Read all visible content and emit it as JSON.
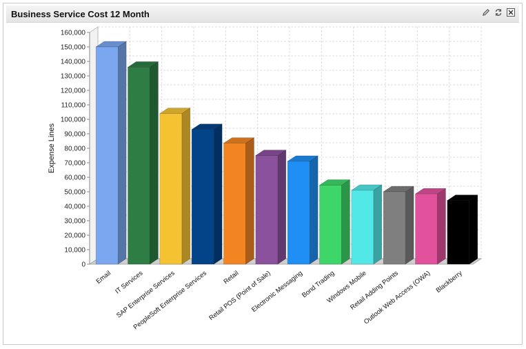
{
  "widget": {
    "title": "Business Service Cost 12 Month",
    "icons": [
      "edit-icon",
      "refresh-icon",
      "close-icon"
    ]
  },
  "chart_data": {
    "type": "bar",
    "style": "3d",
    "title": "",
    "xlabel": "",
    "ylabel": "Expense Lines",
    "ylim": [
      0,
      160000
    ],
    "ytick_step": 10000,
    "ytick_labels": [
      "0",
      "10,000",
      "20,000",
      "30,000",
      "40,000",
      "50,000",
      "60,000",
      "70,000",
      "80,000",
      "90,000",
      "100,000",
      "110,000",
      "120,000",
      "130,000",
      "140,000",
      "150,000",
      "160,000"
    ],
    "grid": true,
    "categories": [
      "Email",
      "IT Services",
      "SAP Enterprise Services",
      "PeopleSoft Enterprise Services",
      "Retail",
      "Retail POS (Point of Sale)",
      "Electronic Messaging",
      "Bond Trading",
      "Windows Mobile",
      "Retail Adding Points",
      "Outlook Web Access (OWA)",
      "Blackberry"
    ],
    "values": [
      150000,
      136000,
      104000,
      93000,
      83500,
      75000,
      71000,
      54500,
      51000,
      50000,
      48500,
      44000
    ],
    "colors": [
      "#7aa7f0",
      "#2e7d45",
      "#f5c232",
      "#034388",
      "#f28522",
      "#8c519d",
      "#1f8ff5",
      "#3ed669",
      "#52e8e8",
      "#7f7f7f",
      "#e2519b",
      "#000000"
    ]
  }
}
